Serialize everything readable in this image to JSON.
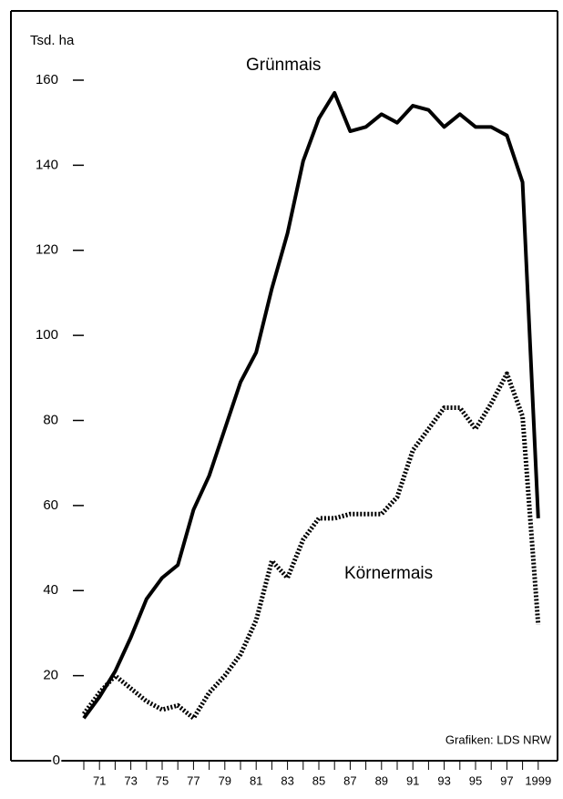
{
  "chart_data": {
    "type": "line",
    "y_label": "Tsd. ha",
    "source": "Grafiken: LDS NRW",
    "categories": [
      null,
      "71",
      null,
      "73",
      null,
      "75",
      null,
      "77",
      null,
      "79",
      null,
      "81",
      null,
      "83",
      null,
      "85",
      null,
      "87",
      null,
      "89",
      null,
      "91",
      null,
      "93",
      null,
      "95",
      null,
      "97",
      null,
      "1999"
    ],
    "series": [
      {
        "name": "Grünmais",
        "color": "#000000",
        "style": "solid",
        "values": [
          10,
          15,
          21,
          29,
          38,
          43,
          46,
          59,
          67,
          78,
          89,
          96,
          111,
          124,
          141,
          151,
          157,
          148,
          149,
          152,
          150,
          154,
          153,
          149,
          152,
          149,
          149,
          147,
          136,
          57
        ]
      },
      {
        "name": "Körnermais",
        "color": "#000000",
        "style": "dotted",
        "values": [
          11,
          16,
          20,
          17,
          14,
          12,
          13,
          10,
          16,
          20,
          25,
          33,
          47,
          43,
          52,
          57,
          57,
          58,
          58,
          58,
          62,
          73,
          78,
          83,
          83,
          78,
          84,
          91,
          81,
          32
        ]
      }
    ],
    "ylim": [
      0,
      160
    ],
    "yticks": [
      0,
      20,
      40,
      60,
      80,
      100,
      120,
      140,
      160
    ]
  }
}
